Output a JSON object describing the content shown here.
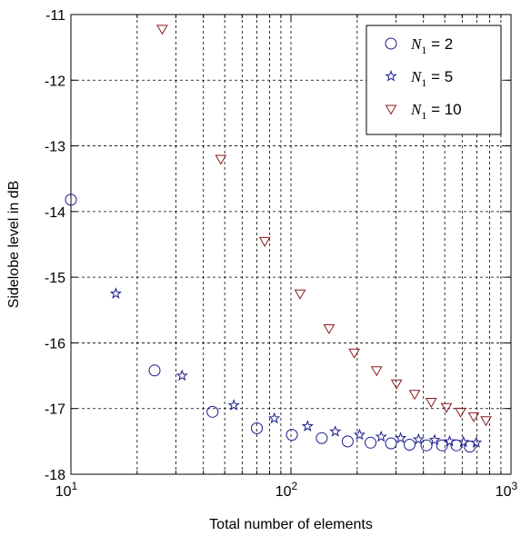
{
  "chart_data": {
    "type": "scatter",
    "xlabel": "Total number of elements",
    "ylabel": "Sidelobe level in dB",
    "xscale": "log",
    "xlim": [
      10,
      1000
    ],
    "ylim": [
      -18,
      -11
    ],
    "x_ticks": [
      {
        "base": "10",
        "exp": "1"
      },
      {
        "base": "10",
        "exp": "2"
      },
      {
        "base": "10",
        "exp": "3"
      }
    ],
    "y_ticks": [
      "-11",
      "-12",
      "-13",
      "-14",
      "-15",
      "-16",
      "-17",
      "-18"
    ],
    "grid": true,
    "legend_position": "top-right",
    "series": [
      {
        "name": "N1 = 2",
        "legend": {
          "var": "N",
          "sub": "1",
          "rest": " = 2"
        },
        "marker": "circle",
        "color": "#1a1a8c",
        "points": [
          [
            10,
            -13.82
          ],
          [
            24,
            -16.42
          ],
          [
            44,
            -17.05
          ],
          [
            70,
            -17.3
          ],
          [
            101,
            -17.4
          ],
          [
            138,
            -17.45
          ],
          [
            181,
            -17.5
          ],
          [
            230,
            -17.52
          ],
          [
            285,
            -17.53
          ],
          [
            346,
            -17.55
          ],
          [
            413,
            -17.56
          ],
          [
            486,
            -17.56
          ],
          [
            565,
            -17.56
          ],
          [
            650,
            -17.58
          ]
        ]
      },
      {
        "name": "N1 = 5",
        "legend": {
          "var": "N",
          "sub": "1",
          "rest": " = 5"
        },
        "marker": "star",
        "color": "#1a1a8c",
        "points": [
          [
            16,
            -15.25
          ],
          [
            32,
            -16.5
          ],
          [
            55,
            -16.95
          ],
          [
            84,
            -17.15
          ],
          [
            119,
            -17.27
          ],
          [
            159,
            -17.35
          ],
          [
            205,
            -17.4
          ],
          [
            257,
            -17.43
          ],
          [
            315,
            -17.45
          ],
          [
            380,
            -17.47
          ],
          [
            450,
            -17.48
          ],
          [
            526,
            -17.5
          ],
          [
            608,
            -17.51
          ],
          [
            695,
            -17.52
          ]
        ]
      },
      {
        "name": "N1 = 10",
        "legend": {
          "var": "N",
          "sub": "1",
          "rest": " = 10"
        },
        "marker": "triangle-down",
        "color": "#8b1a1a",
        "points": [
          [
            26,
            -11.22
          ],
          [
            48,
            -13.2
          ],
          [
            76,
            -14.45
          ],
          [
            110,
            -15.25
          ],
          [
            149,
            -15.78
          ],
          [
            194,
            -16.15
          ],
          [
            245,
            -16.42
          ],
          [
            302,
            -16.62
          ],
          [
            365,
            -16.78
          ],
          [
            434,
            -16.9
          ],
          [
            509,
            -16.98
          ],
          [
            590,
            -17.05
          ],
          [
            677,
            -17.12
          ],
          [
            770,
            -17.18
          ]
        ]
      }
    ]
  }
}
